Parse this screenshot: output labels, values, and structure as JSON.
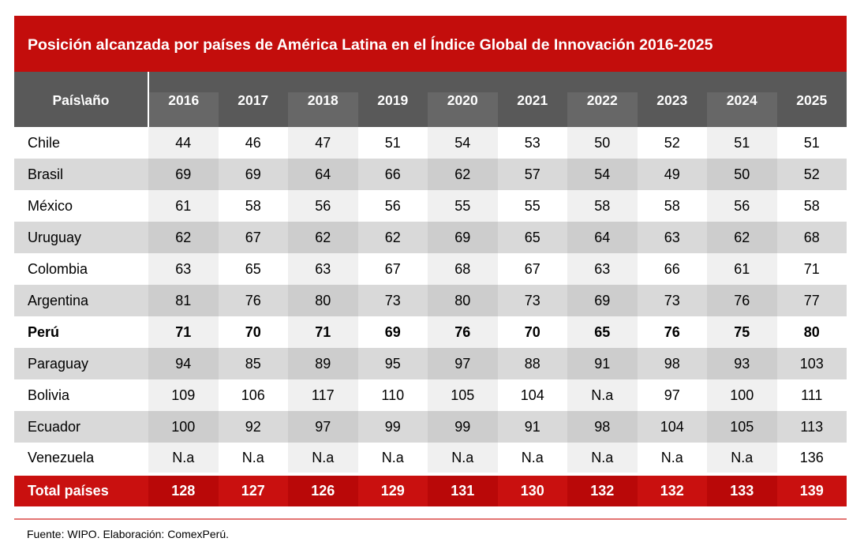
{
  "title": "Posición alcanzada por países de América Latina en el Índice Global de Innovación 2016-2025",
  "chart_data": {
    "type": "table",
    "corner_label": "País\\año",
    "years": [
      "2016",
      "2017",
      "2018",
      "2019",
      "2020",
      "2021",
      "2022",
      "2023",
      "2024",
      "2025"
    ],
    "striped_year_columns": [
      "2016",
      "2018",
      "2020",
      "2022",
      "2024"
    ],
    "rows": [
      {
        "country": "Chile",
        "bold": false,
        "values": [
          "44",
          "46",
          "47",
          "51",
          "54",
          "53",
          "50",
          "52",
          "51",
          "51"
        ]
      },
      {
        "country": "Brasil",
        "bold": false,
        "values": [
          "69",
          "69",
          "64",
          "66",
          "62",
          "57",
          "54",
          "49",
          "50",
          "52"
        ]
      },
      {
        "country": "México",
        "bold": false,
        "values": [
          "61",
          "58",
          "56",
          "56",
          "55",
          "55",
          "58",
          "58",
          "56",
          "58"
        ]
      },
      {
        "country": "Uruguay",
        "bold": false,
        "values": [
          "62",
          "67",
          "62",
          "62",
          "69",
          "65",
          "64",
          "63",
          "62",
          "68"
        ]
      },
      {
        "country": "Colombia",
        "bold": false,
        "values": [
          "63",
          "65",
          "63",
          "67",
          "68",
          "67",
          "63",
          "66",
          "61",
          "71"
        ]
      },
      {
        "country": "Argentina",
        "bold": false,
        "values": [
          "81",
          "76",
          "80",
          "73",
          "80",
          "73",
          "69",
          "73",
          "76",
          "77"
        ]
      },
      {
        "country": "Perú",
        "bold": true,
        "values": [
          "71",
          "70",
          "71",
          "69",
          "76",
          "70",
          "65",
          "76",
          "75",
          "80"
        ]
      },
      {
        "country": "Paraguay",
        "bold": false,
        "values": [
          "94",
          "85",
          "89",
          "95",
          "97",
          "88",
          "91",
          "98",
          "93",
          "103"
        ]
      },
      {
        "country": "Bolivia",
        "bold": false,
        "values": [
          "109",
          "106",
          "117",
          "110",
          "105",
          "104",
          "N.a",
          "97",
          "100",
          "111"
        ]
      },
      {
        "country": "Ecuador",
        "bold": false,
        "values": [
          "100",
          "92",
          "97",
          "99",
          "99",
          "91",
          "98",
          "104",
          "105",
          "113"
        ]
      },
      {
        "country": "Venezuela",
        "bold": false,
        "values": [
          "N.a",
          "N.a",
          "N.a",
          "N.a",
          "N.a",
          "N.a",
          "N.a",
          "N.a",
          "N.a",
          "136"
        ]
      }
    ],
    "total_row": {
      "label": "Total países",
      "values": [
        "128",
        "127",
        "126",
        "129",
        "131",
        "130",
        "132",
        "132",
        "133",
        "139"
      ]
    }
  },
  "footer": {
    "source_note": "Fuente: WIPO. Elaboración: ComexPerú."
  },
  "colors": {
    "title_red": "#C30D0C",
    "total_red": "#C9100F",
    "total_red_striped": "#B90808",
    "header_gray": "#595959",
    "header_gray_striped": "#676767",
    "row_gray": "#D9D9D9",
    "row_gray_striped": "#CDCDCD",
    "row_light": "#FFFFFF",
    "row_light_striped": "#F0F0F0",
    "divider_red": "#E37573"
  }
}
